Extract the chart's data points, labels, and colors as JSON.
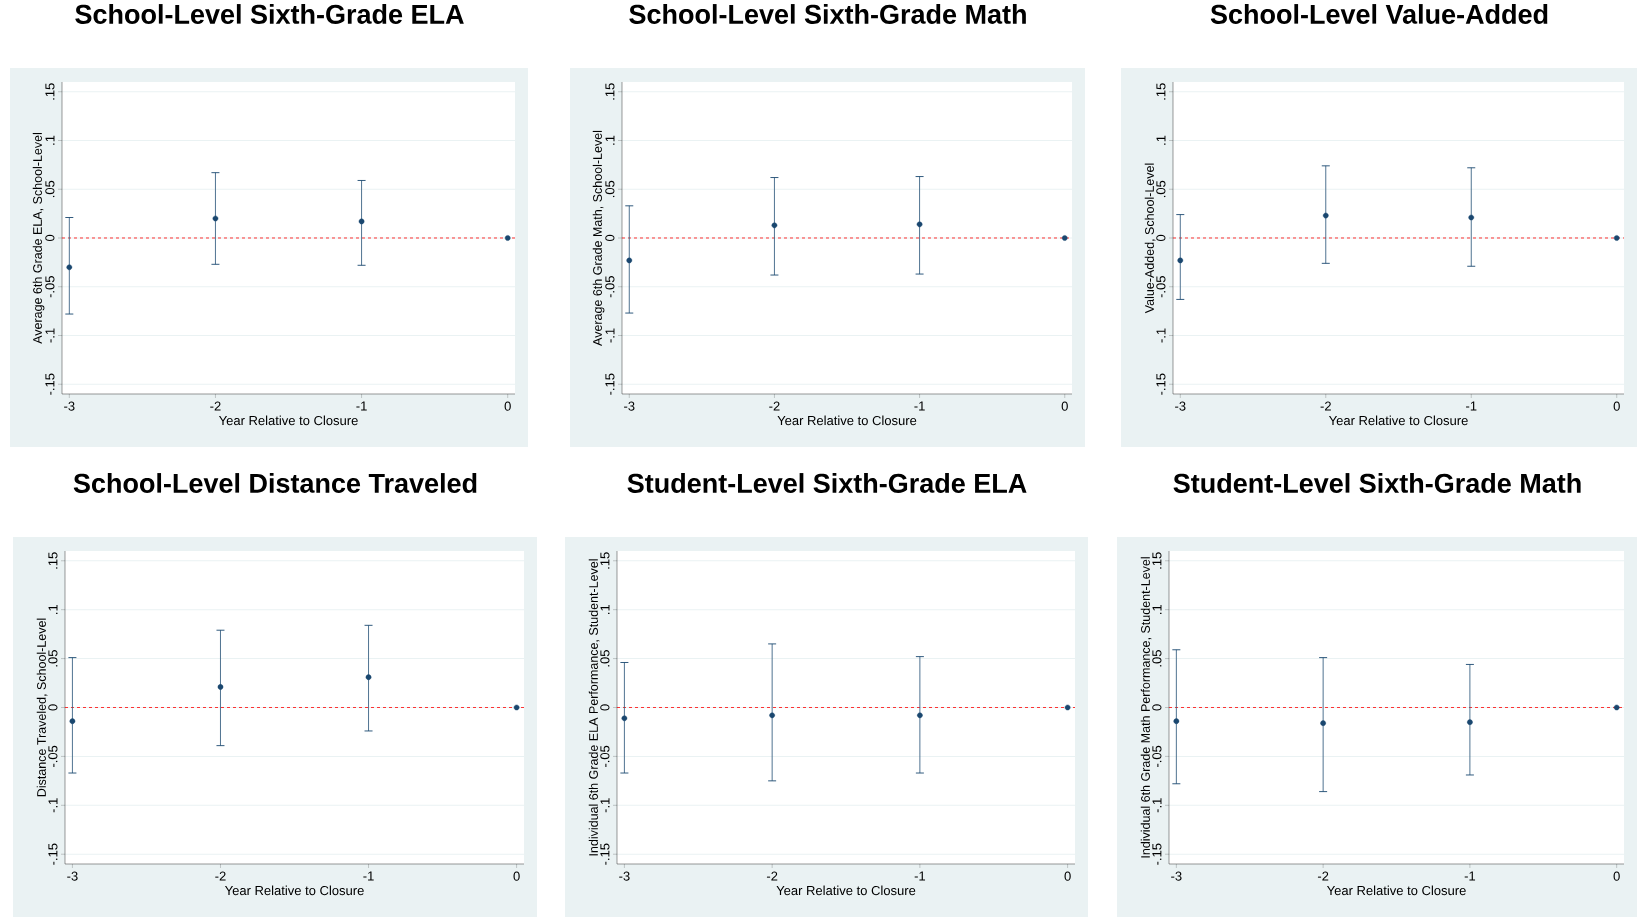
{
  "chart_data": [
    {
      "type": "scatter",
      "title": "School-Level Sixth-Grade ELA",
      "xlabel": "Year Relative to Closure",
      "ylabel": "Average 6th Grade ELA, School-Level",
      "x": [
        -3,
        -2,
        -1,
        0
      ],
      "values": [
        -0.03,
        0.02,
        0.017,
        0
      ],
      "errors": [
        [
          -0.078,
          0.021
        ],
        [
          -0.027,
          0.067
        ],
        [
          -0.028,
          0.059
        ],
        null
      ],
      "color": "#1a476f",
      "marker": "circle",
      "grid": "y",
      "xlim": [
        -3.05,
        0.05
      ],
      "ylim": [
        -0.16,
        0.16
      ],
      "xticks": [
        -3,
        -2,
        -1,
        0
      ],
      "yticks": [
        {
          "value": -0.15,
          "label": "-.15"
        },
        {
          "value": -0.1,
          "label": "-.1"
        },
        {
          "value": -0.05,
          "label": "-.05"
        },
        {
          "value": 0,
          "label": "0"
        },
        {
          "value": 0.05,
          "label": ".05"
        },
        {
          "value": 0.1,
          "label": ".1"
        },
        {
          "value": 0.15,
          "label": ".15"
        }
      ],
      "ref_lines": [
        {
          "axis": "y",
          "value": 0,
          "color": "#ff0000",
          "line_style": "dashed"
        }
      ]
    },
    {
      "type": "scatter",
      "title": "School-Level Sixth-Grade Math",
      "xlabel": "Year Relative to Closure",
      "ylabel": "Average 6th Grade Math, School-Level",
      "x": [
        -3,
        -2,
        -1,
        0
      ],
      "values": [
        -0.023,
        0.013,
        0.014,
        0
      ],
      "errors": [
        [
          -0.077,
          0.033
        ],
        [
          -0.038,
          0.062
        ],
        [
          -0.037,
          0.063
        ],
        null
      ],
      "color": "#1a476f",
      "marker": "circle",
      "grid": "y",
      "xlim": [
        -3.05,
        0.05
      ],
      "ylim": [
        -0.16,
        0.16
      ],
      "xticks": [
        -3,
        -2,
        -1,
        0
      ],
      "yticks": [
        {
          "value": -0.15,
          "label": "-.15"
        },
        {
          "value": -0.1,
          "label": "-.1"
        },
        {
          "value": -0.05,
          "label": "-.05"
        },
        {
          "value": 0,
          "label": "0"
        },
        {
          "value": 0.05,
          "label": ".05"
        },
        {
          "value": 0.1,
          "label": ".1"
        },
        {
          "value": 0.15,
          "label": ".15"
        }
      ],
      "ref_lines": [
        {
          "axis": "y",
          "value": 0,
          "color": "#ff0000",
          "line_style": "dashed"
        }
      ]
    },
    {
      "type": "scatter",
      "title": "School-Level Value-Added",
      "xlabel": "Year Relative to Closure",
      "ylabel": "Value-Added, School-Level",
      "x": [
        -3,
        -2,
        -1,
        0
      ],
      "values": [
        -0.023,
        0.023,
        0.021,
        0
      ],
      "errors": [
        [
          -0.063,
          0.024
        ],
        [
          -0.026,
          0.074
        ],
        [
          -0.029,
          0.072
        ],
        null
      ],
      "color": "#1a476f",
      "marker": "circle",
      "grid": "y",
      "xlim": [
        -3.05,
        0.05
      ],
      "ylim": [
        -0.16,
        0.16
      ],
      "xticks": [
        -3,
        -2,
        -1,
        0
      ],
      "yticks": [
        {
          "value": -0.15,
          "label": "-.15"
        },
        {
          "value": -0.1,
          "label": "-.1"
        },
        {
          "value": -0.05,
          "label": "-.05"
        },
        {
          "value": 0,
          "label": "0"
        },
        {
          "value": 0.05,
          "label": ".05"
        },
        {
          "value": 0.1,
          "label": ".1"
        },
        {
          "value": 0.15,
          "label": ".15"
        }
      ],
      "ref_lines": [
        {
          "axis": "y",
          "value": 0,
          "color": "#ff0000",
          "line_style": "dashed"
        }
      ]
    },
    {
      "type": "scatter",
      "title": "School-Level Distance Traveled",
      "xlabel": "Year Relative to Closure",
      "ylabel": "Distance Traveled, School-Level",
      "x": [
        -3,
        -2,
        -1,
        0
      ],
      "values": [
        -0.014,
        0.021,
        0.031,
        0
      ],
      "errors": [
        [
          -0.067,
          0.051
        ],
        [
          -0.039,
          0.079
        ],
        [
          -0.024,
          0.084
        ],
        null
      ],
      "color": "#1a476f",
      "marker": "circle",
      "grid": "y",
      "xlim": [
        -3.05,
        0.05
      ],
      "ylim": [
        -0.16,
        0.16
      ],
      "xticks": [
        -3,
        -2,
        -1,
        0
      ],
      "yticks": [
        {
          "value": -0.15,
          "label": "-.15"
        },
        {
          "value": -0.1,
          "label": "-.1"
        },
        {
          "value": -0.05,
          "label": "-.05"
        },
        {
          "value": 0,
          "label": "0"
        },
        {
          "value": 0.05,
          "label": ".05"
        },
        {
          "value": 0.1,
          "label": ".1"
        },
        {
          "value": 0.15,
          "label": ".15"
        }
      ],
      "ref_lines": [
        {
          "axis": "y",
          "value": 0,
          "color": "#ff0000",
          "line_style": "dashed"
        }
      ]
    },
    {
      "type": "scatter",
      "title": "Student-Level Sixth-Grade ELA",
      "xlabel": "Year Relative to Closure",
      "ylabel": "Individual 6th Grade ELA Performance, Student-Level",
      "x": [
        -3,
        -2,
        -1,
        0
      ],
      "values": [
        -0.011,
        -0.008,
        -0.008,
        0
      ],
      "errors": [
        [
          -0.067,
          0.046
        ],
        [
          -0.075,
          0.065
        ],
        [
          -0.067,
          0.052
        ],
        null
      ],
      "color": "#1a476f",
      "marker": "circle",
      "grid": "y",
      "xlim": [
        -3.05,
        0.05
      ],
      "ylim": [
        -0.16,
        0.16
      ],
      "xticks": [
        -3,
        -2,
        -1,
        0
      ],
      "yticks": [
        {
          "value": -0.15,
          "label": "-.15"
        },
        {
          "value": -0.1,
          "label": "-.1"
        },
        {
          "value": -0.05,
          "label": "-.05"
        },
        {
          "value": 0,
          "label": "0"
        },
        {
          "value": 0.05,
          "label": ".05"
        },
        {
          "value": 0.1,
          "label": ".1"
        },
        {
          "value": 0.15,
          "label": ".15"
        }
      ],
      "ref_lines": [
        {
          "axis": "y",
          "value": 0,
          "color": "#ff0000",
          "line_style": "dashed"
        }
      ]
    },
    {
      "type": "scatter",
      "title": "Student-Level Sixth-Grade Math",
      "xlabel": "Year Relative to Closure",
      "ylabel": "Individual 6th Grade Math Performance, Student-Level",
      "x": [
        -3,
        -2,
        -1,
        0
      ],
      "values": [
        -0.014,
        -0.016,
        -0.015,
        0
      ],
      "errors": [
        [
          -0.078,
          0.059
        ],
        [
          -0.086,
          0.051
        ],
        [
          -0.069,
          0.044
        ],
        null
      ],
      "color": "#1a476f",
      "marker": "circle",
      "grid": "y",
      "xlim": [
        -3.05,
        0.05
      ],
      "ylim": [
        -0.16,
        0.16
      ],
      "xticks": [
        -3,
        -2,
        -1,
        0
      ],
      "yticks": [
        {
          "value": -0.15,
          "label": "-.15"
        },
        {
          "value": -0.1,
          "label": "-.1"
        },
        {
          "value": -0.05,
          "label": "-.05"
        },
        {
          "value": 0,
          "label": "0"
        },
        {
          "value": 0.05,
          "label": ".05"
        },
        {
          "value": 0.1,
          "label": ".1"
        },
        {
          "value": 0.15,
          "label": ".15"
        }
      ],
      "ref_lines": [
        {
          "axis": "y",
          "value": 0,
          "color": "#ff0000",
          "line_style": "dashed"
        }
      ]
    }
  ]
}
